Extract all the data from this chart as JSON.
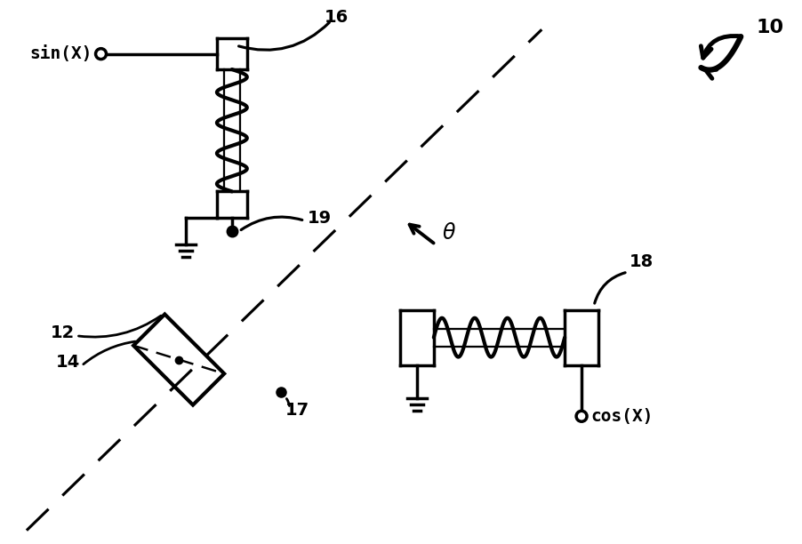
{
  "bg_color": "#ffffff",
  "lc": "#000000",
  "lw": 2.5,
  "figsize": [
    9.02,
    6.12
  ],
  "dpi": 100,
  "labels": {
    "sin": "sin(X)",
    "cos": "cos(X)",
    "n10": "10",
    "n12": "12",
    "n14": "14",
    "n16": "16",
    "n17": "17",
    "n18": "18",
    "n19": "19",
    "theta": "θ"
  }
}
